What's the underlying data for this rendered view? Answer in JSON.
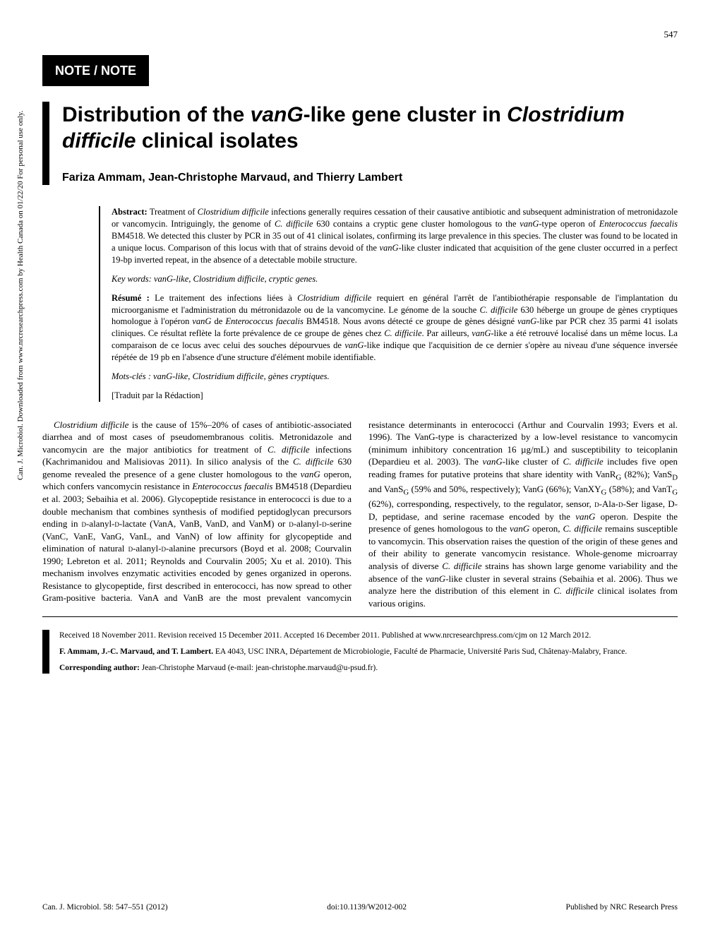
{
  "page_number": "547",
  "sidebar": "Can. J. Microbiol. Downloaded from www.nrcresearchpress.com by Health Canada on 01/22/20\n                                    For personal use only.",
  "note_banner": "NOTE / NOTE",
  "title_html": "Distribution of the <span class=\"italic\">vanG</span>-like gene cluster in <span class=\"italic\">Clostridium difficile</span> clinical isolates",
  "authors": "Fariza Ammam, Jean-Christophe Marvaud, and Thierry Lambert",
  "abstract_en_label": "Abstract:",
  "abstract_en_html": "Treatment of <span class=\"species\">Clostridium difficile</span> infections generally requires cessation of their causative antibiotic and subsequent administration of metronidazole or vancomycin. Intriguingly, the genome of <span class=\"species\">C. difficile</span> 630 contains a cryptic gene cluster homologous to the <span class=\"species\">vanG</span>-type operon of <span class=\"species\">Enterococcus faecalis</span> BM4518. We detected this cluster by PCR in 35 out of 41 clinical isolates, confirming its large prevalence in this species. The cluster was found to be located in a unique locus. Comparison of this locus with that of strains devoid of the <span class=\"species\">vanG</span>-like cluster indicated that acquisition of the gene cluster occurred in a perfect 19-bp inverted repeat, in the absence of a detectable mobile structure.",
  "keywords_en_label": "Key words:",
  "keywords_en_html": "<span class=\"species\">vanG</span>-like, <span class=\"species\">Clostridium difficile</span>, cryptic genes.",
  "abstract_fr_label": "Résumé :",
  "abstract_fr_html": "Le traitement des infections liées à <span class=\"species\">Clostridium difficile</span> requiert en général l'arrêt de l'antibiothérapie responsable de l'implantation du microorganisme et l'administration du métronidazole ou de la vancomycine. Le génome de la souche <span class=\"species\">C. difficile</span> 630 héberge un groupe de gènes cryptiques homologue à l'opéron <span class=\"species\">vanG</span> de <span class=\"species\">Enterococcus faecalis</span> BM4518. Nous avons détecté ce groupe de gènes désigné <span class=\"species\">vanG</span>-like par PCR chez 35 parmi 41 isolats cliniques. Ce résultat reflète la forte prévalence de ce groupe de gènes chez <span class=\"species\">C. difficile</span>. Par ailleurs, <span class=\"species\">vanG</span>-like a été retrouvé localisé dans un même locus. La comparaison de ce locus avec celui des souches dépourvues de <span class=\"species\">vanG</span>-like indique que l'acquisition de ce dernier s'opère au niveau d'une séquence inversée répétée de 19 pb en l'absence d'une structure d'élément mobile identifiable.",
  "keywords_fr_label": "Mots-clés :",
  "keywords_fr_html": "<span class=\"species\">vanG</span>-like, <span class=\"species\">Clostridium difficile</span>, gènes cryptiques.",
  "translated_note": "[Traduit par la Rédaction]",
  "body_html": "<span class=\"species\">Clostridium difficile</span> is the cause of 15%–20% of cases of antibiotic-associated diarrhea and of most cases of pseudomembranous colitis. Metronidazole and vancomycin are the major antibiotics for treatment of <span class=\"species\">C. difficile</span> infections (Kachrimanidou and Malisiovas 2011). In silico analysis of the <span class=\"species\">C. difficile</span> 630 genome revealed the presence of a gene cluster homologous to the <span class=\"species\">vanG</span> operon, which confers vancomycin resistance in <span class=\"species\">Enterococcus faecalis</span> BM4518 (Depardieu et al. 2003; Sebaihia et al. 2006). Glycopeptide resistance in enterococci is due to a double mechanism that combines synthesis of modified peptidoglycan precursors ending in <span class=\"smallcaps\">d</span>-alanyl-<span class=\"smallcaps\">d</span>-lactate (VanA, VanB, VanD, and VanM) or <span class=\"smallcaps\">d</span>-alanyl-<span class=\"smallcaps\">d</span>-serine (VanC, VanE, VanG, VanL, and VanN) of low affinity for glycopeptide and elimination of natural <span class=\"smallcaps\">d</span>-alanyl-<span class=\"smallcaps\">d</span>-alanine precursors (Boyd et al. 2008; Courvalin 1990; Lebreton et al. 2011; Reynolds and Courvalin 2005; Xu et al. 2010). This mechanism involves enzymatic activities encoded by genes organized in operons. Resistance to glycopeptide, first described in enterococci, has now spread to other Gram-positive bacteria. VanA and VanB are the most prevalent vancomycin resistance determinants in enterococci (Arthur and Courvalin 1993; Evers et al. 1996). The VanG-type is characterized by a low-level resistance to vancomycin (minimum inhibitory concentration 16 µg/mL) and susceptibility to teicoplanin (Depardieu et al. 2003). The <span class=\"species\">vanG</span>-like cluster of <span class=\"species\">C. difficile</span> includes five open reading frames for putative proteins that share identity with VanR<sub>G</sub> (82%); VanS<sub>D</sub> and VanS<sub>G</sub> (59% and 50%, respectively); VanG (66%); VanXY<sub>G</sub> (58%); and VanT<sub>G</sub> (62%), corresponding, respectively, to the regulator, sensor, <span class=\"smallcaps\">d</span>-Ala-<span class=\"smallcaps\">d</span>-Ser ligase, D-D, peptidase, and serine racemase encoded by the <span class=\"species\">vanG</span> operon. Despite the presence of genes homologous to the <span class=\"species\">vanG</span> operon, <span class=\"species\">C. difficile</span> remains susceptible to vancomycin. This observation raises the question of the origin of these genes and of their ability to generate vancomycin resistance. Whole-genome microarray analysis of diverse <span class=\"species\">C. difficile</span> strains has shown large genome variability and the absence of the <span class=\"species\">vanG</span>-like cluster in several strains (Sebaihia et al. 2006). Thus we analyze here the distribution of this element in <span class=\"species\">C. difficile</span> clinical isolates from various origins.",
  "received": "Received 18 November 2011. Revision received 15 December 2011. Accepted 16 December 2011. Published at www.nrcresearchpress.com/cjm on 12 March 2012.",
  "affiliation_html": "<b>F. Ammam, J.-C. Marvaud, and T. Lambert.</b> EA 4043, USC INRA, Département de Microbiologie, Faculté de Pharmacie, Université Paris Sud, Châtenay-Malabry, France.",
  "corresponding_html": "<b>Corresponding author:</b> Jean-Christophe Marvaud (e-mail: jean-christophe.marvaud@u-psud.fr).",
  "bottom_left": "Can. J. Microbiol. 58: 547–551 (2012)",
  "bottom_center": "doi:10.1139/W2012-002",
  "bottom_right": "Published by NRC Research Press"
}
